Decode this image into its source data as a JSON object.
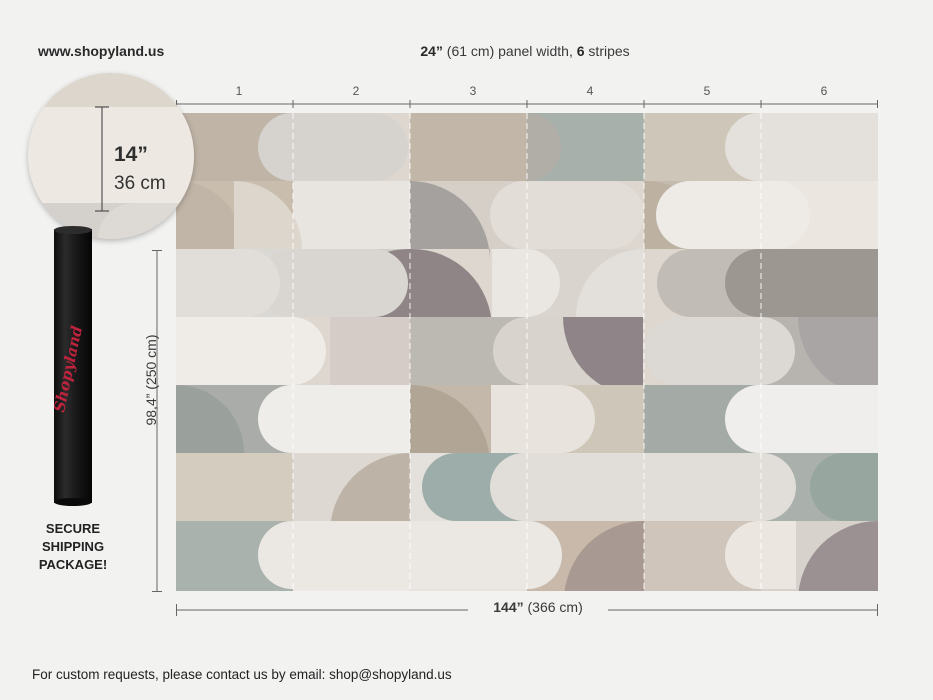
{
  "header": {
    "site": "www.shopyland.us",
    "panel_width_bold": "24”",
    "panel_width_metric": " (61 cm) panel width, ",
    "stripes_bold": "6",
    "stripes_word": " stripes"
  },
  "stripes": [
    "1",
    "2",
    "3",
    "4",
    "5",
    "6"
  ],
  "zoom": {
    "inches": "14”",
    "cm": "36 cm"
  },
  "dimensions": {
    "height": "98,4” (250 cm)",
    "width_bold": "144”",
    "width_metric": " (366 cm)"
  },
  "tube": {
    "brand": "Shopyland",
    "label_lines": [
      "SECURE",
      "SHIPPING",
      "PACKAGE!"
    ]
  },
  "footer": {
    "text": "For custom requests, please contact us by email: shop@shopyland.us"
  },
  "colors": {
    "background": "#f2f2f1",
    "tube": "#1b1b1b",
    "brand": "#c0233d",
    "palette": [
      "#ede9e4",
      "#d8d2ca",
      "#bfb6ab",
      "#a8a29e",
      "#9aa6a1",
      "#8d8588"
    ]
  }
}
